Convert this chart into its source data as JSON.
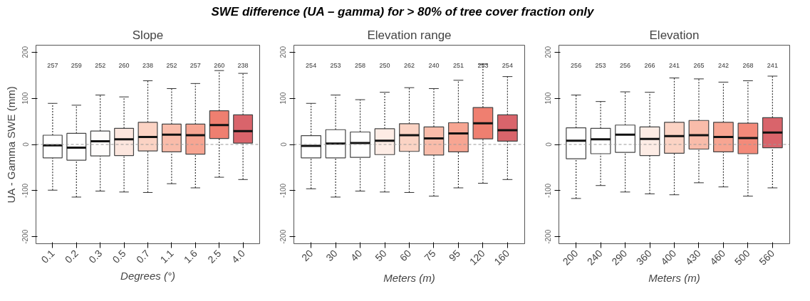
{
  "chart_data": [
    {
      "type": "other",
      "title": "SWE difference (UA – gamma) for > 80% of tree cover fraction only"
    },
    {
      "type": "box",
      "title": "Slope",
      "xlabel": "Degrees (°)",
      "ylabel": "UA - Gamma SWE (mm)",
      "categories": [
        "0.1",
        "0.2",
        "0.3",
        "0.5",
        "0.7",
        "1.1",
        "1.6",
        "2.5",
        "4.0"
      ],
      "boxes": [
        {
          "low": -99,
          "q1": -29,
          "median": -2,
          "q3": 20,
          "high": 89
        },
        {
          "low": -114,
          "q1": -34,
          "median": -7,
          "q3": 24,
          "high": 85
        },
        {
          "low": -101,
          "q1": -25,
          "median": 7,
          "q3": 29,
          "high": 107
        },
        {
          "low": -103,
          "q1": -24,
          "median": 11,
          "q3": 35,
          "high": 103
        },
        {
          "low": -104,
          "q1": -14,
          "median": 16,
          "q3": 48,
          "high": 138
        },
        {
          "low": -85,
          "q1": -16,
          "median": 21,
          "q3": 44,
          "high": 121
        },
        {
          "low": -94,
          "q1": -21,
          "median": 20,
          "q3": 44,
          "high": 132
        },
        {
          "low": -71,
          "q1": 13,
          "median": 42,
          "q3": 73,
          "high": 160
        },
        {
          "low": -76,
          "q1": 3,
          "median": 29,
          "q3": 64,
          "high": 154
        }
      ],
      "colors": [
        "#ffffff",
        "#ffffff",
        "#fefcfb",
        "#fce6de",
        "#fbd3c4",
        "#f9bcaa",
        "#f7a592",
        "#ef7f70",
        "#d9646b"
      ],
      "ylim": [
        -215,
        215
      ],
      "yticks": [
        -200,
        -100,
        0,
        100,
        200
      ],
      "grid": false,
      "ref_lines": [
        {
          "axis": "y",
          "value": 0,
          "color": "#999999",
          "line_style": "dashed"
        }
      ],
      "annotations": [
        "257",
        "259",
        "252",
        "260",
        "238",
        "252",
        "257",
        "260",
        "238"
      ]
    },
    {
      "type": "box",
      "title": "Elevation range",
      "xlabel": "Meters (m)",
      "categories": [
        "20",
        "30",
        "40",
        "50",
        "60",
        "75",
        "95",
        "120",
        "160"
      ],
      "boxes": [
        {
          "low": -96,
          "q1": -29,
          "median": -3,
          "q3": 19,
          "high": 89
        },
        {
          "low": -114,
          "q1": -29,
          "median": 2,
          "q3": 32,
          "high": 107
        },
        {
          "low": -101,
          "q1": -28,
          "median": 3,
          "q3": 27,
          "high": 97
        },
        {
          "low": -103,
          "q1": -22,
          "median": 8,
          "q3": 34,
          "high": 113
        },
        {
          "low": -104,
          "q1": -15,
          "median": 20,
          "q3": 45,
          "high": 123
        },
        {
          "low": -112,
          "q1": -23,
          "median": 13,
          "q3": 38,
          "high": 121
        },
        {
          "low": -94,
          "q1": -16,
          "median": 24,
          "q3": 47,
          "high": 139
        },
        {
          "low": -84,
          "q1": 12,
          "median": 46,
          "q3": 80,
          "high": 174
        },
        {
          "low": -76,
          "q1": 7,
          "median": 31,
          "q3": 64,
          "high": 147
        }
      ],
      "colors": [
        "#ffffff",
        "#ffffff",
        "#ffffff",
        "#fdece5",
        "#fbd3c4",
        "#f9bcaa",
        "#f7a592",
        "#ef7f70",
        "#d9646b"
      ],
      "ylim": [
        -215,
        215
      ],
      "yticks": [
        -200,
        -100,
        0,
        100,
        200
      ],
      "grid": false,
      "ref_lines": [
        {
          "axis": "y",
          "value": 0,
          "color": "#999999",
          "line_style": "dashed"
        }
      ],
      "annotations": [
        "254",
        "253",
        "258",
        "250",
        "262",
        "240",
        "251",
        "253",
        "254"
      ]
    },
    {
      "type": "box",
      "title": "Elevation",
      "xlabel": "Meters (m)",
      "categories": [
        "200",
        "240",
        "290",
        "360",
        "400",
        "430",
        "460",
        "500",
        "560"
      ],
      "boxes": [
        {
          "low": -117,
          "q1": -31,
          "median": 8,
          "q3": 36,
          "high": 107
        },
        {
          "low": -89,
          "q1": -20,
          "median": 11,
          "q3": 35,
          "high": 93
        },
        {
          "low": -103,
          "q1": -17,
          "median": 21,
          "q3": 42,
          "high": 114
        },
        {
          "low": -107,
          "q1": -24,
          "median": 12,
          "q3": 38,
          "high": 113
        },
        {
          "low": -109,
          "q1": -19,
          "median": 18,
          "q3": 48,
          "high": 144
        },
        {
          "low": -83,
          "q1": -10,
          "median": 20,
          "q3": 52,
          "high": 142
        },
        {
          "low": -92,
          "q1": -16,
          "median": 16,
          "q3": 48,
          "high": 135
        },
        {
          "low": -112,
          "q1": -20,
          "median": 14,
          "q3": 46,
          "high": 138
        },
        {
          "low": -94,
          "q1": -7,
          "median": 26,
          "q3": 58,
          "high": 148
        }
      ],
      "colors": [
        "#ffffff",
        "#ffffff",
        "#ffffff",
        "#fdece5",
        "#fbd3c4",
        "#f9bcaa",
        "#f7a592",
        "#f38a7a",
        "#d9646b"
      ],
      "ylim": [
        -215,
        215
      ],
      "yticks": [
        -200,
        -100,
        0,
        100,
        200
      ],
      "grid": false,
      "ref_lines": [
        {
          "axis": "y",
          "value": 0,
          "color": "#999999",
          "line_style": "dashed"
        }
      ],
      "annotations": [
        "256",
        "253",
        "256",
        "266",
        "241",
        "265",
        "242",
        "268",
        "241"
      ]
    }
  ]
}
